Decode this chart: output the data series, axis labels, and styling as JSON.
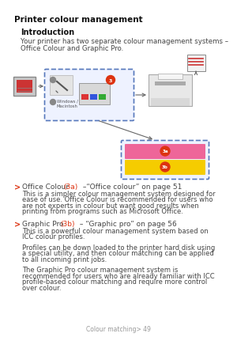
{
  "title": "Printer colour management",
  "intro_heading": "Introduction",
  "intro_text1": "Your printer has two separate colour management systems –",
  "intro_text2": "Office Colour and Graphic Pro.",
  "bullet1_p1": "Office Colour ",
  "bullet1_p2": "(3a)",
  "bullet1_p3": " –“Office colour” on page 51",
  "bullet1_body": "This is a simpler colour management system designed for\nease of use. Office Colour is recommended for users who\nare not experts in colour but want good results when\nprinting from programs such as Microsoft Office.",
  "bullet2_p1": "Graphic Pro ",
  "bullet2_p2": "(3b)",
  "bullet2_p3": " – “Graphic pro” on page 56",
  "bullet2_body1": "This is a powerful colour management system based on\nICC colour profiles.",
  "bullet2_body2": "Profiles can be down loaded to the printer hard disk using\na special utility, and then colour matching can be applied\nto all incoming print jobs.",
  "bullet2_body3": "The Graphic Pro colour management system is\nrecommended for users who are already familiar with ICC\nprofile-based colour matching and require more control\nover colour.",
  "footer": "Colour matching> 49",
  "bg_color": "#ffffff",
  "text_color": "#444444",
  "red_color": "#dd3311",
  "title_color": "#111111",
  "pink_color": "#ee6699",
  "yellow_color": "#f5cc00",
  "box_border": "#5577bb",
  "arrow_color": "#666666",
  "grey_icon": "#aaaaaa",
  "grey_light": "#dddddd",
  "grey_mid": "#bbbbbb"
}
